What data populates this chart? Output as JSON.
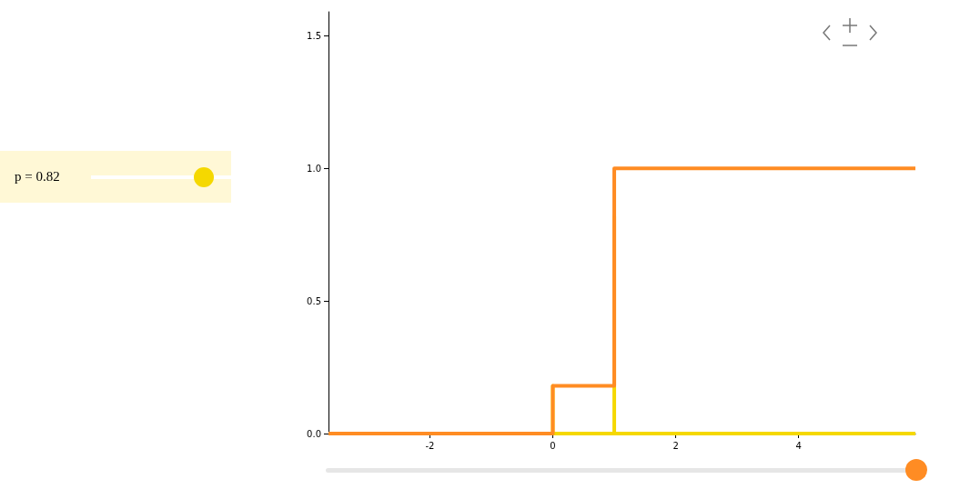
{
  "chart_data": {
    "type": "line",
    "xlim": [
      -3.65,
      5.9
    ],
    "ylim": [
      0,
      1.59
    ],
    "xticks": [
      -2,
      0,
      2,
      4
    ],
    "yticks": [
      {
        "value": 0,
        "label": "0.0"
      },
      {
        "value": 0.5,
        "label": "0.5"
      },
      {
        "value": 1,
        "label": "1.0"
      },
      {
        "value": 1.5,
        "label": "1.5"
      }
    ],
    "grid": false,
    "marker": "none",
    "line_style": "solid",
    "annotations": [
      "p = 0.82"
    ],
    "series": [
      {
        "color": "#f5d800",
        "x": [
          0,
          0,
          0,
          1,
          1,
          1,
          5.9
        ],
        "values": [
          0,
          0.18,
          0,
          0,
          0.82,
          0,
          0
        ]
      },
      {
        "type": "step",
        "color": "#ff8c23",
        "x": [
          -3.65,
          0,
          1,
          5.9
        ],
        "values": [
          0,
          0.18,
          1,
          1
        ]
      }
    ]
  }
}
